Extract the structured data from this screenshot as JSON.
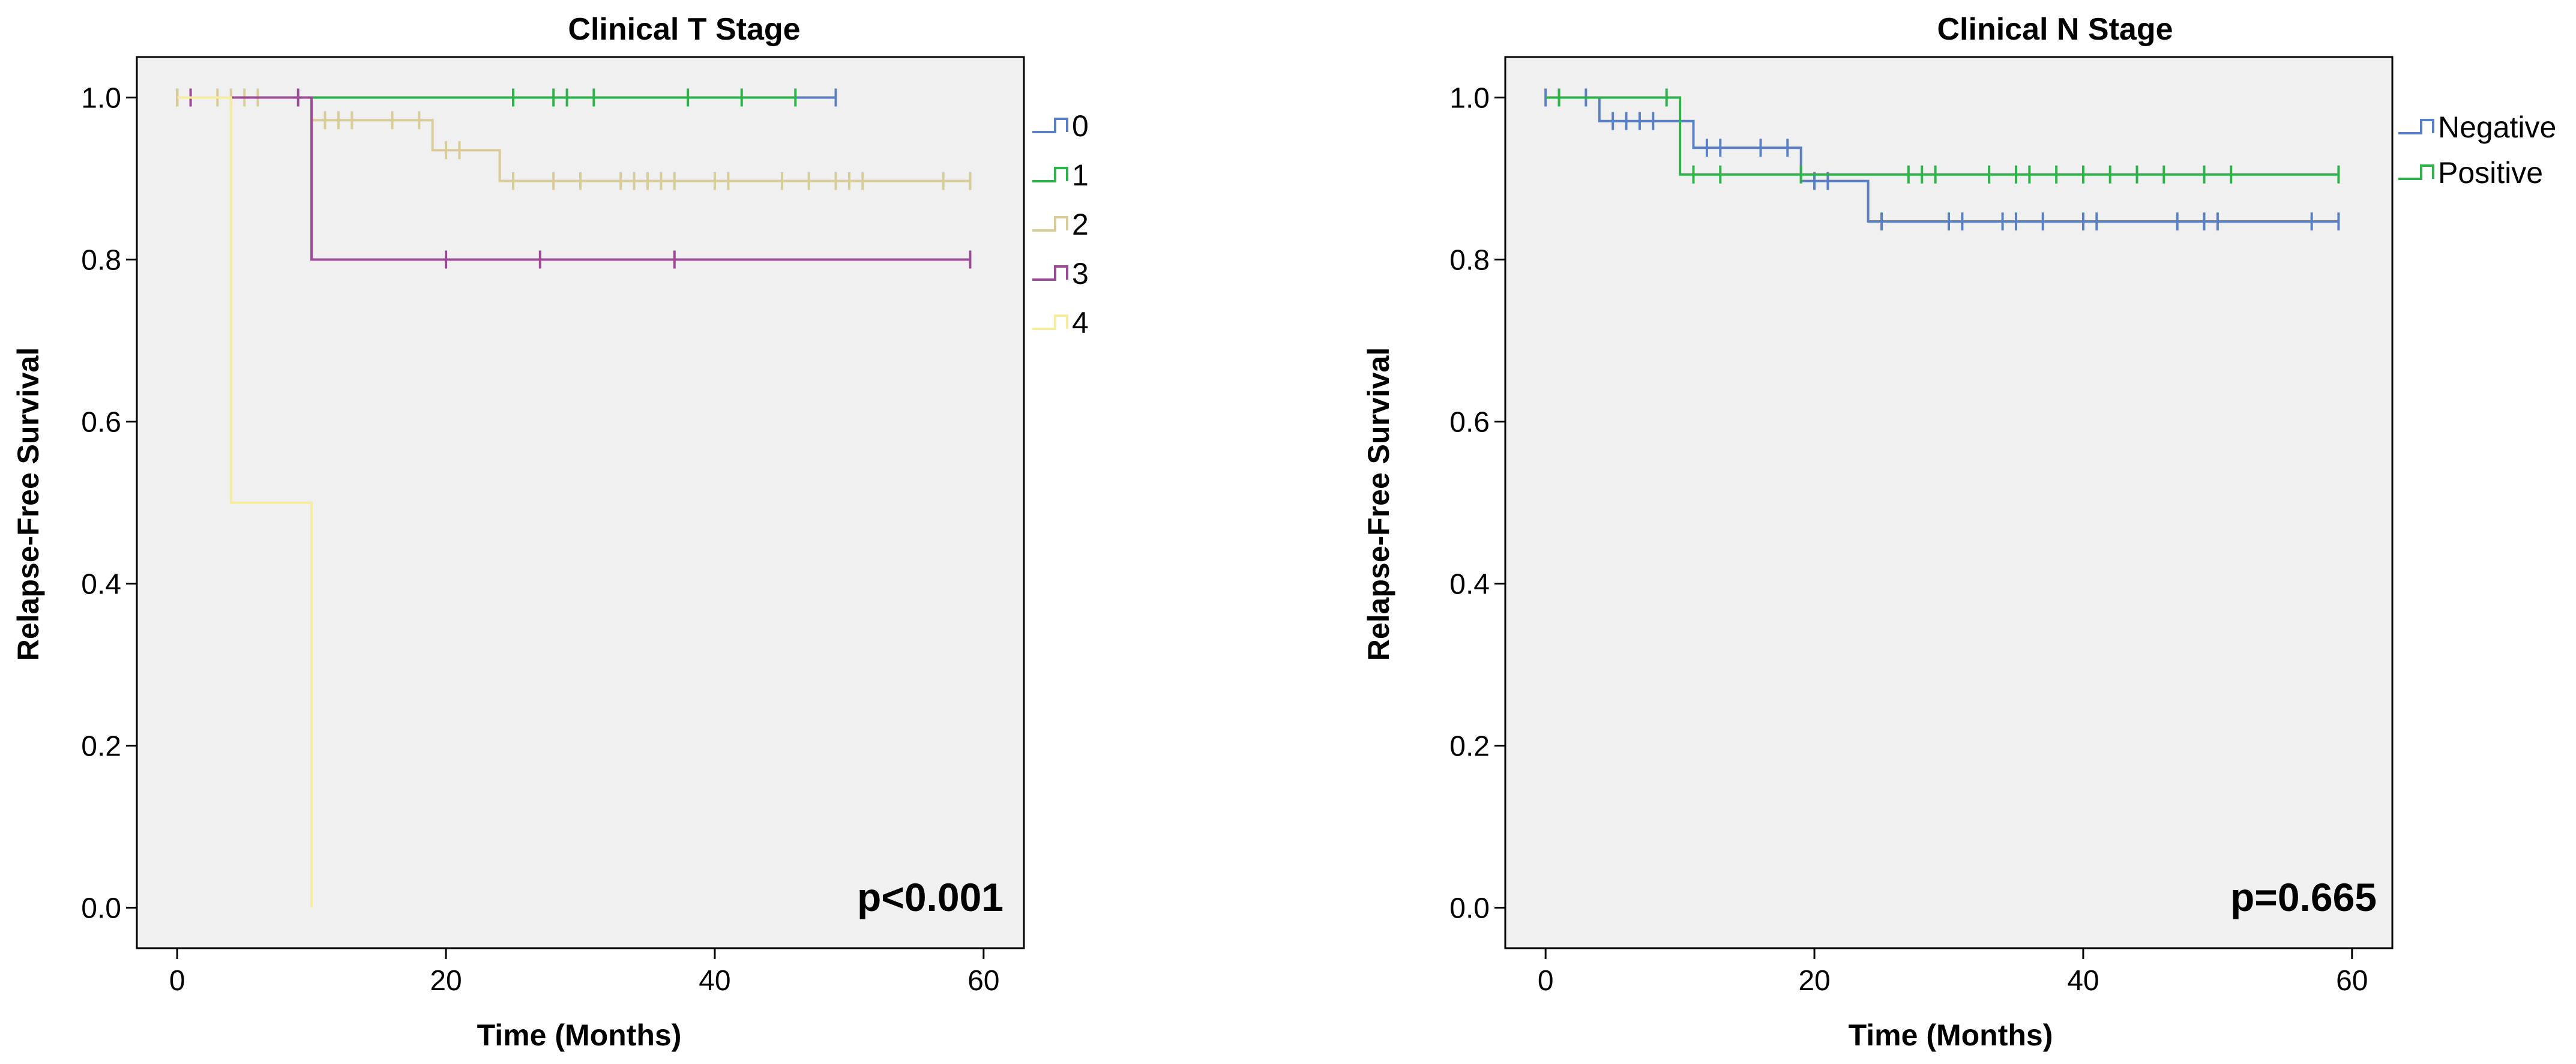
{
  "chart_data": [
    {
      "type": "line",
      "subtype": "kaplan-meier",
      "title": "Clinical T Stage",
      "xlabel": "Time (Months)",
      "ylabel": "Relapse-Free Survival",
      "xlim": [
        -3,
        63
      ],
      "ylim": [
        -0.05,
        1.05
      ],
      "xticks": [
        0,
        20,
        40,
        60
      ],
      "yticks": [
        0.0,
        0.2,
        0.4,
        0.6,
        0.8,
        1.0
      ],
      "ytick_labels": [
        "0.0",
        "0.2",
        "0.4",
        "0.6",
        "0.8",
        "1.0"
      ],
      "grid": false,
      "legend_position": "right",
      "annotation": "p<0.001",
      "series": [
        {
          "name": "0",
          "color": "#5b7fc4",
          "steps": [
            [
              0,
              1.0
            ],
            [
              49,
              1.0
            ]
          ],
          "censored": [
            [
              0,
              1.0
            ],
            [
              49,
              1.0
            ]
          ]
        },
        {
          "name": "1",
          "color": "#2db34a",
          "steps": [
            [
              10,
              1.0
            ],
            [
              46,
              1.0
            ]
          ],
          "censored": [
            [
              25,
              1.0
            ],
            [
              28,
              1.0
            ],
            [
              29,
              1.0
            ],
            [
              31,
              1.0
            ],
            [
              38,
              1.0
            ],
            [
              42,
              1.0
            ],
            [
              46,
              1.0
            ]
          ]
        },
        {
          "name": "2",
          "color": "#d8cc98",
          "steps": [
            [
              0,
              1.0
            ],
            [
              10,
              1.0
            ],
            [
              10,
              0.972
            ],
            [
              19,
              0.972
            ],
            [
              19,
              0.935
            ],
            [
              24,
              0.935
            ],
            [
              24,
              0.897
            ],
            [
              59,
              0.897
            ]
          ],
          "censored": [
            [
              0,
              1.0
            ],
            [
              3,
              1.0
            ],
            [
              4,
              1.0
            ],
            [
              5,
              1.0
            ],
            [
              6,
              1.0
            ],
            [
              11,
              0.972
            ],
            [
              12,
              0.972
            ],
            [
              13,
              0.972
            ],
            [
              16,
              0.972
            ],
            [
              18,
              0.972
            ],
            [
              20,
              0.935
            ],
            [
              21,
              0.935
            ],
            [
              25,
              0.897
            ],
            [
              28,
              0.897
            ],
            [
              30,
              0.897
            ],
            [
              33,
              0.897
            ],
            [
              34,
              0.897
            ],
            [
              35,
              0.897
            ],
            [
              36,
              0.897
            ],
            [
              37,
              0.897
            ],
            [
              40,
              0.897
            ],
            [
              41,
              0.897
            ],
            [
              45,
              0.897
            ],
            [
              47,
              0.897
            ],
            [
              49,
              0.897
            ],
            [
              50,
              0.897
            ],
            [
              51,
              0.897
            ],
            [
              57,
              0.897
            ],
            [
              59,
              0.897
            ]
          ]
        },
        {
          "name": "3",
          "color": "#9c4a96",
          "steps": [
            [
              0,
              1.0
            ],
            [
              10,
              1.0
            ],
            [
              10,
              0.8
            ],
            [
              59,
              0.8
            ]
          ],
          "censored": [
            [
              1,
              1.0
            ],
            [
              9,
              1.0
            ],
            [
              20,
              0.8
            ],
            [
              27,
              0.8
            ],
            [
              37,
              0.8
            ],
            [
              59,
              0.8
            ]
          ]
        },
        {
          "name": "4",
          "color": "#f5ec9e",
          "steps": [
            [
              0,
              1.0
            ],
            [
              4,
              1.0
            ],
            [
              4,
              0.5
            ],
            [
              10,
              0.5
            ],
            [
              10,
              0.0
            ]
          ],
          "censored": []
        }
      ]
    },
    {
      "type": "line",
      "subtype": "kaplan-meier",
      "title": "Clinical N Stage",
      "xlabel": "Time (Months)",
      "ylabel": "Relapse-Free Survival",
      "xlim": [
        -3,
        63
      ],
      "ylim": [
        -0.05,
        1.05
      ],
      "xticks": [
        0,
        20,
        40,
        60
      ],
      "yticks": [
        0.0,
        0.2,
        0.4,
        0.6,
        0.8,
        1.0
      ],
      "ytick_labels": [
        "0.0",
        "0.2",
        "0.4",
        "0.6",
        "0.8",
        "1.0"
      ],
      "grid": false,
      "legend_position": "right",
      "annotation": "p=0.665",
      "series": [
        {
          "name": "Negative",
          "color": "#5b7fc4",
          "steps": [
            [
              0,
              1.0
            ],
            [
              4,
              1.0
            ],
            [
              4,
              0.971
            ],
            [
              11,
              0.971
            ],
            [
              11,
              0.938
            ],
            [
              19,
              0.938
            ],
            [
              19,
              0.897
            ],
            [
              24,
              0.897
            ],
            [
              24,
              0.847
            ],
            [
              59,
              0.847
            ]
          ],
          "censored": [
            [
              0,
              1.0
            ],
            [
              1,
              1.0
            ],
            [
              3,
              1.0
            ],
            [
              5,
              0.971
            ],
            [
              6,
              0.971
            ],
            [
              7,
              0.971
            ],
            [
              8,
              0.971
            ],
            [
              12,
              0.938
            ],
            [
              13,
              0.938
            ],
            [
              16,
              0.938
            ],
            [
              18,
              0.938
            ],
            [
              20,
              0.897
            ],
            [
              21,
              0.897
            ],
            [
              25,
              0.847
            ],
            [
              30,
              0.847
            ],
            [
              31,
              0.847
            ],
            [
              34,
              0.847
            ],
            [
              35,
              0.847
            ],
            [
              37,
              0.847
            ],
            [
              40,
              0.847
            ],
            [
              41,
              0.847
            ],
            [
              47,
              0.847
            ],
            [
              49,
              0.847
            ],
            [
              50,
              0.847
            ],
            [
              57,
              0.847
            ],
            [
              59,
              0.847
            ]
          ]
        },
        {
          "name": "Positive",
          "color": "#2db34a",
          "steps": [
            [
              0,
              1.0
            ],
            [
              10,
              1.0
            ],
            [
              10,
              0.905
            ],
            [
              59,
              0.905
            ]
          ],
          "censored": [
            [
              1,
              1.0
            ],
            [
              9,
              1.0
            ],
            [
              11,
              0.905
            ],
            [
              13,
              0.905
            ],
            [
              19,
              0.905
            ],
            [
              27,
              0.905
            ],
            [
              28,
              0.905
            ],
            [
              29,
              0.905
            ],
            [
              33,
              0.905
            ],
            [
              35,
              0.905
            ],
            [
              36,
              0.905
            ],
            [
              38,
              0.905
            ],
            [
              40,
              0.905
            ],
            [
              42,
              0.905
            ],
            [
              44,
              0.905
            ],
            [
              46,
              0.905
            ],
            [
              49,
              0.905
            ],
            [
              51,
              0.905
            ],
            [
              59,
              0.905
            ]
          ]
        }
      ]
    }
  ]
}
